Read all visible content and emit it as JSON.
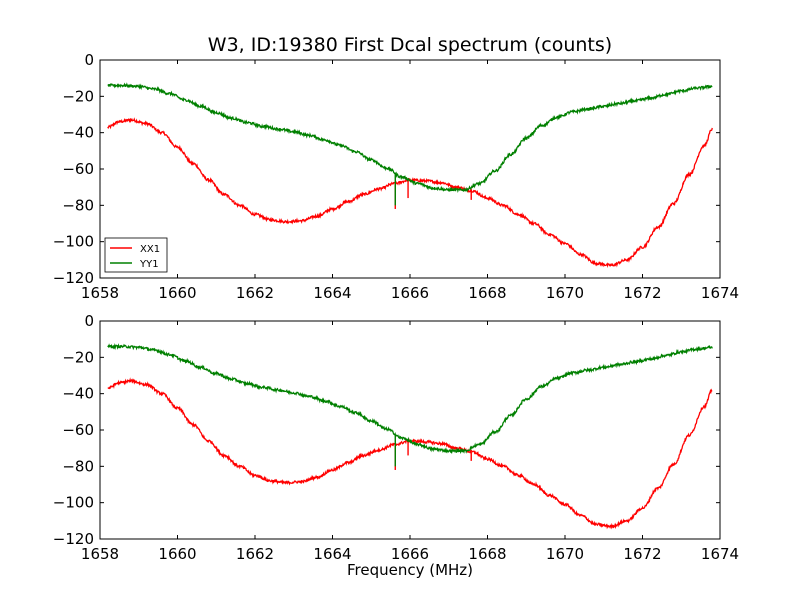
{
  "figure": {
    "title": "W3, ID:19380 First Dcal spectrum (counts)",
    "xlabel": "Frequency (MHz)"
  },
  "chart_data": [
    {
      "type": "line",
      "title": "W3, ID:19380 First Dcal spectrum (counts)",
      "xlabel": "",
      "ylabel": "",
      "xlim": [
        1658,
        1674
      ],
      "ylim": [
        -120,
        0
      ],
      "xticks": [
        1658,
        1660,
        1662,
        1664,
        1666,
        1668,
        1670,
        1672,
        1674
      ],
      "yticks": [
        0,
        -20,
        -40,
        -60,
        -80,
        -100,
        -120
      ],
      "grid": false,
      "legend": "lower-left",
      "series": [
        {
          "name": "XX1",
          "color": "#ff0000",
          "x": [
            1658.2,
            1658.5,
            1658.8,
            1659.2,
            1659.6,
            1660.0,
            1660.4,
            1660.8,
            1661.2,
            1661.6,
            1662.0,
            1662.4,
            1662.8,
            1663.2,
            1663.6,
            1664.0,
            1664.4,
            1664.8,
            1665.2,
            1665.6,
            1666.0,
            1666.4,
            1666.8,
            1667.2,
            1667.6,
            1668.0,
            1668.4,
            1668.8,
            1669.2,
            1669.6,
            1670.0,
            1670.4,
            1670.8,
            1671.2,
            1671.6,
            1672.0,
            1672.4,
            1672.8,
            1673.2,
            1673.6,
            1673.8
          ],
          "y": [
            -37,
            -34,
            -33,
            -35,
            -40,
            -48,
            -57,
            -66,
            -74,
            -80,
            -85,
            -88,
            -89,
            -88.5,
            -86,
            -82,
            -78,
            -74,
            -71,
            -68,
            -66,
            -66.5,
            -67.5,
            -70,
            -72,
            -76,
            -80,
            -85,
            -90,
            -96,
            -101,
            -107,
            -112,
            -113,
            -110,
            -103,
            -92,
            -79,
            -63,
            -47,
            -38
          ],
          "spikes": [
            {
              "x": 1665.62,
              "y": -82
            },
            {
              "x": 1665.95,
              "y": -76
            },
            {
              "x": 1667.58,
              "y": -77
            }
          ]
        },
        {
          "name": "YY1",
          "color": "#008000",
          "x": [
            1658.2,
            1658.6,
            1659.0,
            1659.4,
            1659.8,
            1660.2,
            1660.6,
            1661.0,
            1661.4,
            1661.8,
            1662.2,
            1662.6,
            1663.0,
            1663.4,
            1663.8,
            1664.2,
            1664.6,
            1665.0,
            1665.4,
            1665.8,
            1666.2,
            1666.6,
            1667.0,
            1667.4,
            1667.8,
            1668.2,
            1668.6,
            1669.0,
            1669.4,
            1669.8,
            1670.2,
            1670.6,
            1671.0,
            1671.4,
            1671.8,
            1672.2,
            1672.6,
            1673.0,
            1673.4,
            1673.8
          ],
          "y": [
            -14,
            -14,
            -14.5,
            -16,
            -18.5,
            -22,
            -25.5,
            -29,
            -32,
            -34.5,
            -36.5,
            -38,
            -39.5,
            -41.5,
            -44,
            -47,
            -50.5,
            -55,
            -59.5,
            -64.5,
            -68,
            -70.5,
            -71.5,
            -71.5,
            -68,
            -61,
            -52,
            -43,
            -36,
            -31.5,
            -28.5,
            -27,
            -25.5,
            -24,
            -22.5,
            -21,
            -19,
            -17,
            -15.5,
            -14.5
          ],
          "spikes": [
            {
              "x": 1665.62,
              "y": -80
            }
          ]
        }
      ]
    },
    {
      "type": "line",
      "title": "",
      "xlabel": "Frequency (MHz)",
      "ylabel": "",
      "xlim": [
        1658,
        1674
      ],
      "ylim": [
        -120,
        0
      ],
      "xticks": [
        1658,
        1660,
        1662,
        1664,
        1666,
        1668,
        1670,
        1672,
        1674
      ],
      "yticks": [
        0,
        -20,
        -40,
        -60,
        -80,
        -100,
        -120
      ],
      "grid": false,
      "series": [
        {
          "color": "#ff0000",
          "x": [
            1658.2,
            1658.5,
            1658.8,
            1659.2,
            1659.6,
            1660.0,
            1660.4,
            1660.8,
            1661.2,
            1661.6,
            1662.0,
            1662.4,
            1662.8,
            1663.2,
            1663.6,
            1664.0,
            1664.4,
            1664.8,
            1665.2,
            1665.6,
            1666.0,
            1666.4,
            1666.8,
            1667.2,
            1667.6,
            1668.0,
            1668.4,
            1668.8,
            1669.2,
            1669.6,
            1670.0,
            1670.4,
            1670.8,
            1671.2,
            1671.6,
            1672.0,
            1672.4,
            1672.8,
            1673.2,
            1673.6,
            1673.8
          ],
          "y": [
            -37,
            -34,
            -33,
            -35,
            -40,
            -48,
            -57,
            -66,
            -74,
            -80,
            -85,
            -88,
            -89,
            -88.5,
            -86,
            -82,
            -78,
            -74,
            -71,
            -68,
            -66,
            -66.5,
            -67.5,
            -70,
            -72,
            -76,
            -80,
            -85,
            -90,
            -96,
            -101,
            -107,
            -112,
            -113,
            -110,
            -103,
            -92,
            -79,
            -63,
            -47,
            -38
          ],
          "spikes": [
            {
              "x": 1665.62,
              "y": -82
            },
            {
              "x": 1665.95,
              "y": -74
            },
            {
              "x": 1667.58,
              "y": -77
            }
          ]
        },
        {
          "color": "#008000",
          "x": [
            1658.2,
            1658.6,
            1659.0,
            1659.4,
            1659.8,
            1660.2,
            1660.6,
            1661.0,
            1661.4,
            1661.8,
            1662.2,
            1662.6,
            1663.0,
            1663.4,
            1663.8,
            1664.2,
            1664.6,
            1665.0,
            1665.4,
            1665.8,
            1666.2,
            1666.6,
            1667.0,
            1667.4,
            1667.8,
            1668.2,
            1668.6,
            1669.0,
            1669.4,
            1669.8,
            1670.2,
            1670.6,
            1671.0,
            1671.4,
            1671.8,
            1672.2,
            1672.6,
            1673.0,
            1673.4,
            1673.8
          ],
          "y": [
            -14,
            -14,
            -14.5,
            -16,
            -18.5,
            -22,
            -25.5,
            -29,
            -32,
            -34.5,
            -36.5,
            -38,
            -39.5,
            -41.5,
            -44,
            -47,
            -50.5,
            -55,
            -59.5,
            -64.5,
            -68,
            -70.5,
            -71.5,
            -71.5,
            -68,
            -61,
            -52,
            -43,
            -36,
            -31.5,
            -28.5,
            -27,
            -25.5,
            -24,
            -22.5,
            -21,
            -19,
            -17,
            -15.5,
            -14.5
          ],
          "spikes": [
            {
              "x": 1665.62,
              "y": -80
            }
          ]
        }
      ]
    }
  ]
}
